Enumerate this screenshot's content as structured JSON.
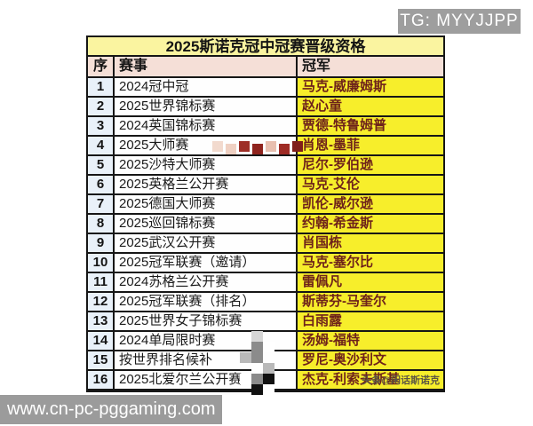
{
  "badge": {
    "text": "TG: MYYJJPP"
  },
  "watermarks": {
    "url": "www.cn-pc-pggaming.com",
    "credit": "头条@闲话斯诺克"
  },
  "table": {
    "title": "2025斯诺克冠中冠赛晋级资格",
    "headers": {
      "index": "序",
      "event": "赛事",
      "champion": "冠军"
    },
    "rows": [
      {
        "no": "1",
        "event": "2024冠中冠",
        "champion": "马克-威廉姆斯"
      },
      {
        "no": "2",
        "event": "2025世界锦标赛",
        "champion": "赵心童"
      },
      {
        "no": "3",
        "event": "2024英国锦标赛",
        "champion": "贾德-特鲁姆普"
      },
      {
        "no": "4",
        "event": "2025大师赛",
        "champion": "肖恩-墨菲"
      },
      {
        "no": "5",
        "event": "2025沙特大师赛",
        "champion": "尼尔-罗伯逊"
      },
      {
        "no": "6",
        "event": "2025英格兰公开赛",
        "champion": "马克-艾伦"
      },
      {
        "no": "7",
        "event": "2025德国大师赛",
        "champion": "凯伦-威尔逊"
      },
      {
        "no": "8",
        "event": "2025巡回锦标赛",
        "champion": "约翰-希金斯"
      },
      {
        "no": "9",
        "event": "2025武汉公开赛",
        "champion": "肖国栋"
      },
      {
        "no": "10",
        "event": "2025冠军联赛（邀请）",
        "champion": "马克-塞尔比"
      },
      {
        "no": "11",
        "event": "2024苏格兰公开赛",
        "champion": "雷佩凡"
      },
      {
        "no": "12",
        "event": "2025冠军联赛（排名）",
        "champion": "斯蒂芬-马奎尔"
      },
      {
        "no": "13",
        "event": "2025世界女子锦标赛",
        "champion": "白雨露"
      },
      {
        "no": "14",
        "event": "2024单局限时赛",
        "champion": "汤姆-福特"
      },
      {
        "no": "15",
        "event": "按世界排名候补",
        "champion": "罗尼-奥沙利文"
      },
      {
        "no": "16",
        "event": "2025北爱尔兰公开赛",
        "champion": "杰克-利索夫斯基"
      }
    ]
  },
  "colors": {
    "title_bg": "#FAF4A0",
    "header_bg": "#F5DFD7",
    "index_bg": "#E9F1F9",
    "event_bg": "#FFFFFF",
    "champion_bg": "#F7EE2B",
    "champion_text": "#6E221A",
    "badge_bg": "#9E9E9E",
    "urlbar_bg": "#9B9B9B",
    "border": "#161616"
  }
}
